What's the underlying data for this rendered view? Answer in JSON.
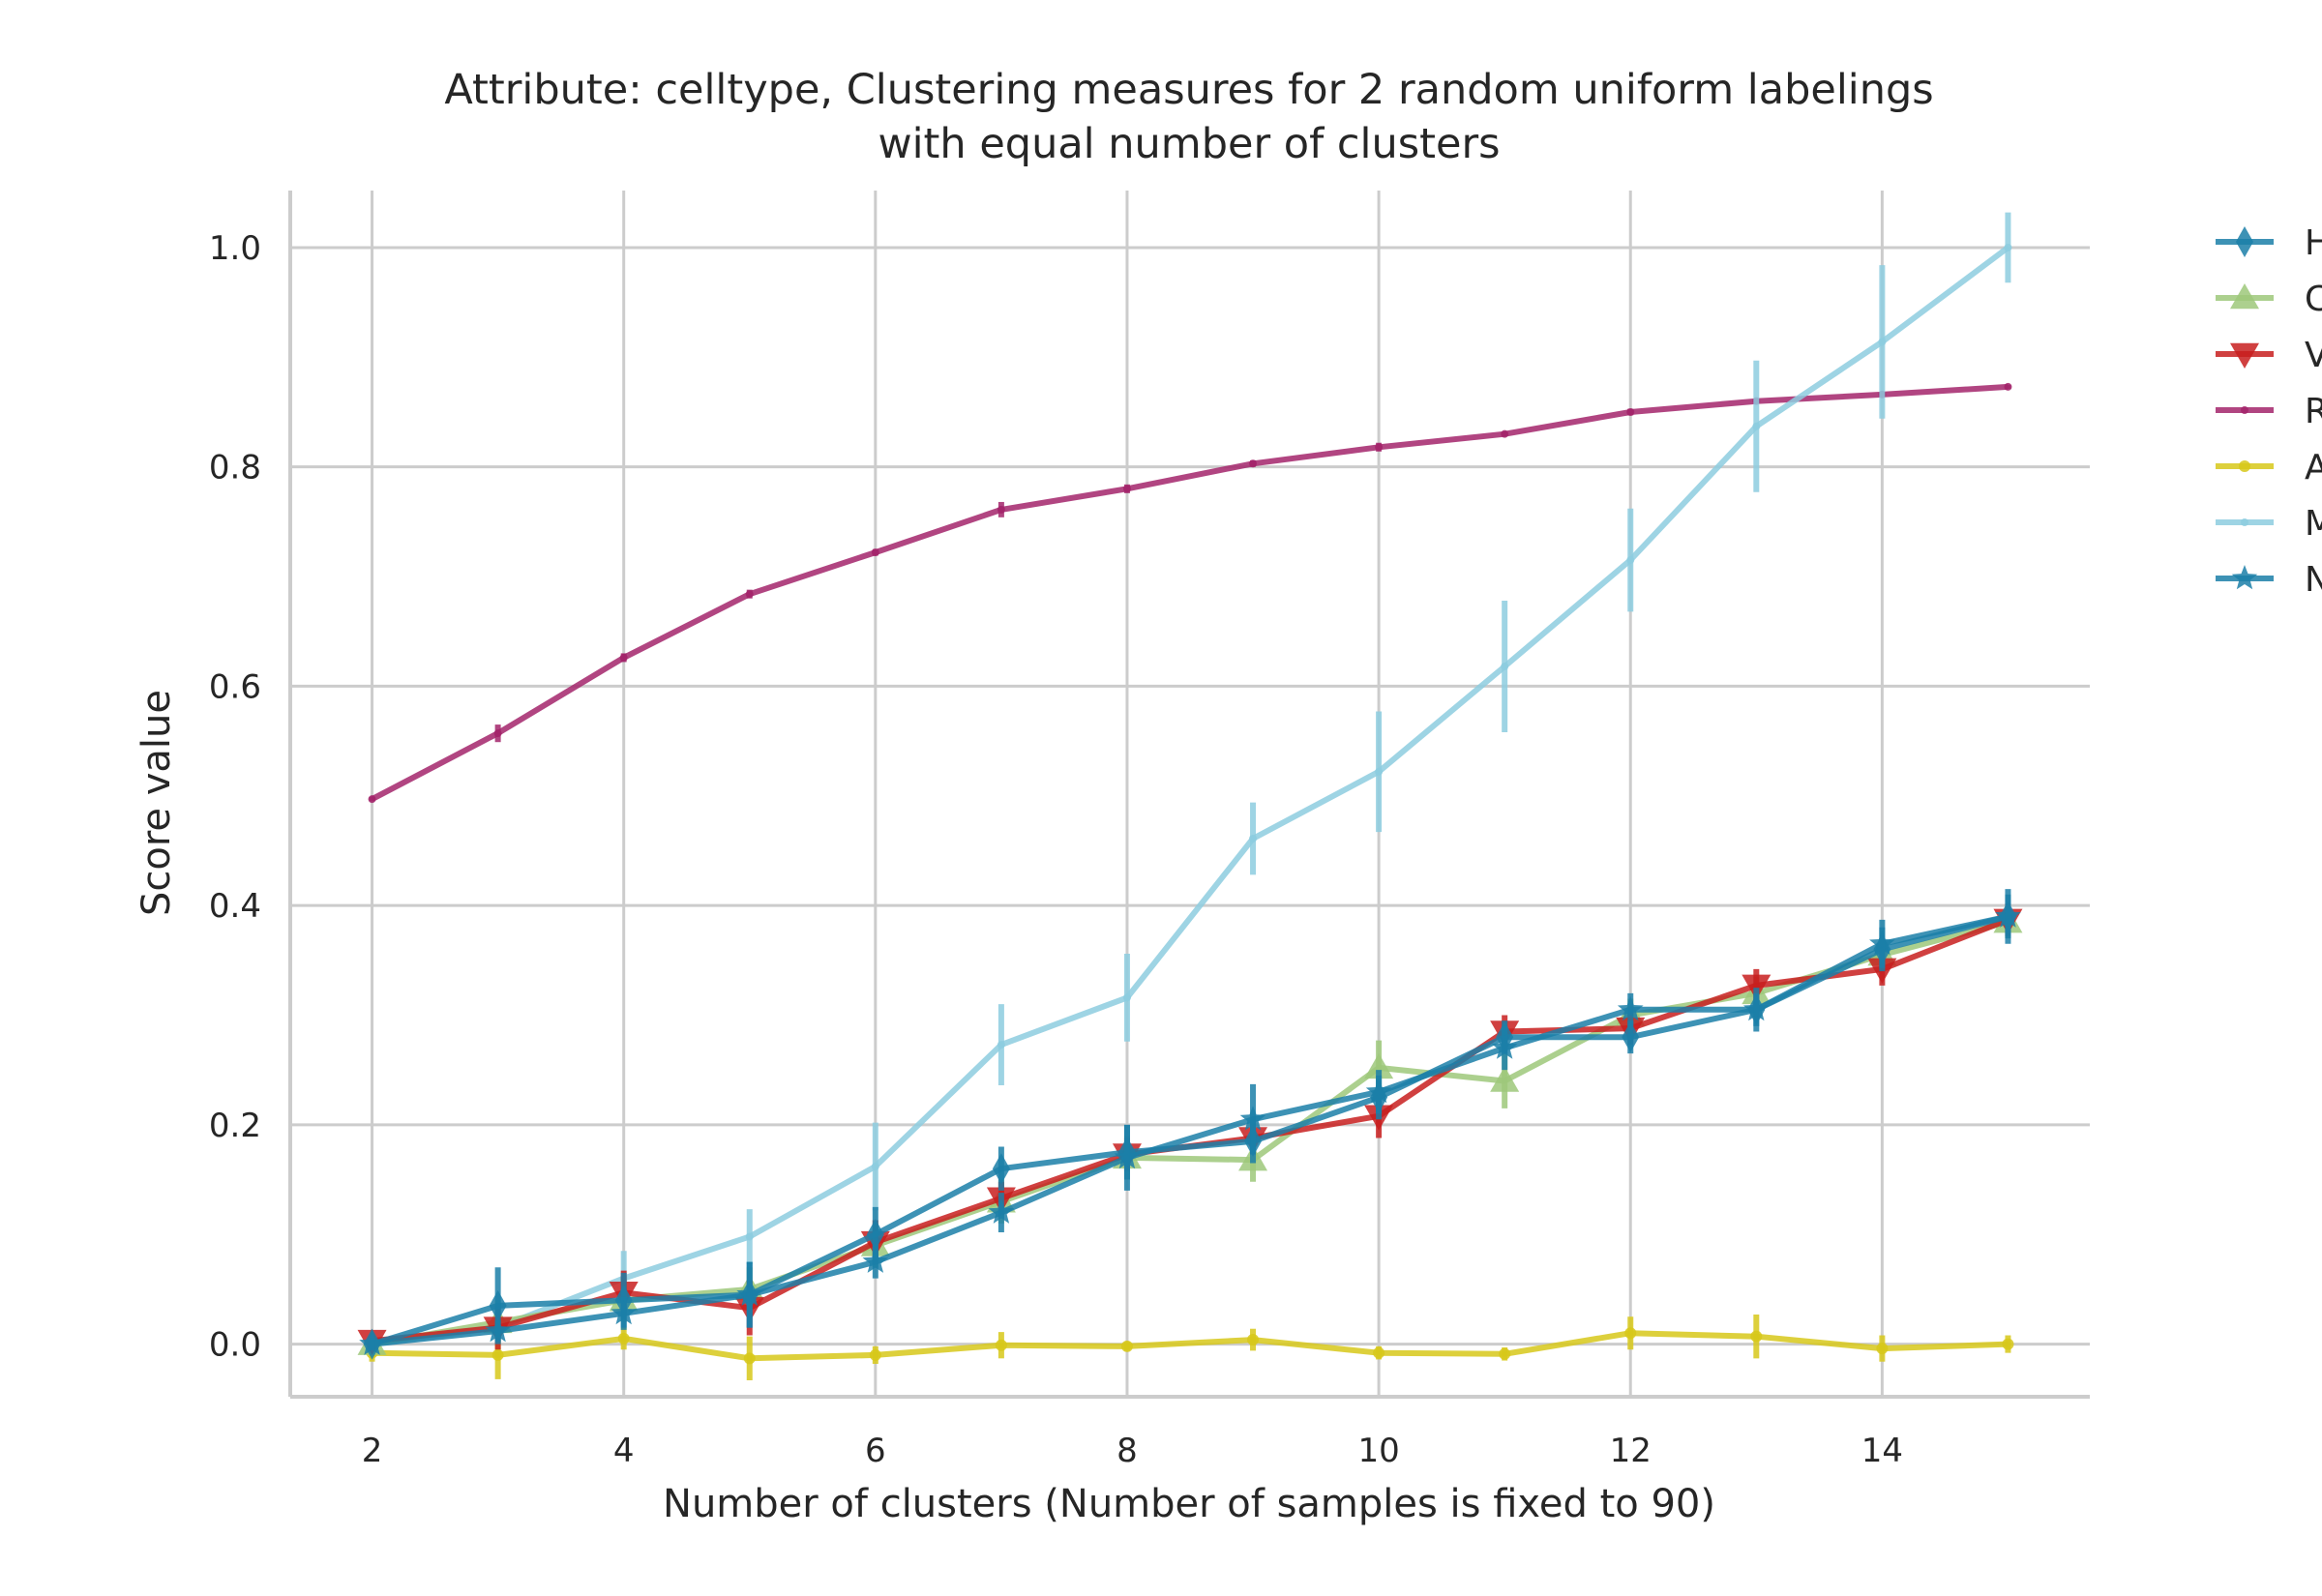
{
  "chart_data": {
    "type": "line",
    "title": [
      "Attribute: celltype, Clustering measures for 2 random uniform labelings",
      "with equal number of clusters"
    ],
    "xlabel": "Number of clusters (Number of samples is fixed to 90)",
    "ylabel": "Score value",
    "xlim": [
      1.35,
      15.65
    ],
    "ylim": [
      -0.048,
      1.052
    ],
    "xticks": [
      2,
      4,
      6,
      8,
      10,
      12,
      14
    ],
    "yticks": [
      0.0,
      0.2,
      0.4,
      0.6,
      0.8,
      1.0
    ],
    "ytick_labels": [
      "0.0",
      "0.2",
      "0.4",
      "0.6",
      "0.8",
      "1.0"
    ],
    "grid": true,
    "legend_placement": "outside-right",
    "x": [
      2,
      3,
      4,
      5,
      6,
      7,
      8,
      9,
      10,
      11,
      12,
      13,
      14,
      15
    ],
    "series": [
      {
        "name": "H",
        "color": "#1b7fa8",
        "marker": "thin_diamond",
        "values": [
          0.0,
          0.035,
          0.04,
          0.045,
          0.1,
          0.16,
          0.175,
          0.185,
          0.225,
          0.28,
          0.28,
          0.305,
          0.36,
          0.39
        ],
        "errors": [
          0.005,
          0.035,
          0.025,
          0.03,
          0.025,
          0.02,
          0.025,
          0.02,
          0.02,
          0.015,
          0.015,
          0.015,
          0.02,
          0.02
        ]
      },
      {
        "name": "C",
        "color": "#9dc87a",
        "marker": "triangle_up",
        "values": [
          0.0,
          0.02,
          0.04,
          0.05,
          0.09,
          0.13,
          0.17,
          0.168,
          0.252,
          0.24,
          0.3,
          0.32,
          0.355,
          0.385
        ],
        "errors": [
          0.005,
          0.02,
          0.02,
          0.02,
          0.02,
          0.02,
          0.02,
          0.02,
          0.025,
          0.025,
          0.015,
          0.015,
          0.015,
          0.015
        ]
      },
      {
        "name": "V",
        "color": "#c81e1e",
        "marker": "triangle_down",
        "values": [
          0.003,
          0.015,
          0.047,
          0.033,
          0.093,
          0.133,
          0.173,
          0.188,
          0.208,
          0.285,
          0.288,
          0.327,
          0.342,
          0.387
        ],
        "errors": [
          0.005,
          0.02,
          0.02,
          0.025,
          0.02,
          0.015,
          0.015,
          0.015,
          0.02,
          0.015,
          0.015,
          0.015,
          0.015,
          0.015
        ]
      },
      {
        "name": "R",
        "color": "#a3256b",
        "marker": "none",
        "values": [
          0.497,
          0.557,
          0.626,
          0.684,
          0.722,
          0.761,
          0.78,
          0.803,
          0.818,
          0.83,
          0.85,
          0.86,
          0.866,
          0.873
        ],
        "errors": [
          0.002,
          0.008,
          0.004,
          0.004,
          0.003,
          0.007,
          0.004,
          0.003,
          0.004,
          0.002,
          0.003,
          0.002,
          0.002,
          0.002
        ]
      },
      {
        "name": "A",
        "color": "#d7c81a",
        "marker": "point",
        "values": [
          -0.008,
          -0.01,
          0.005,
          -0.013,
          -0.01,
          -0.001,
          -0.002,
          0.004,
          -0.008,
          -0.009,
          0.01,
          0.007,
          -0.004,
          0.0
        ],
        "errors": [
          0.008,
          0.022,
          0.01,
          0.02,
          0.008,
          0.012,
          0.004,
          0.01,
          0.006,
          0.006,
          0.015,
          0.02,
          0.012,
          0.008
        ]
      },
      {
        "name": "M",
        "color": "#8dcddf",
        "marker": "none",
        "values": [
          0.0,
          0.015,
          0.06,
          0.098,
          0.162,
          0.273,
          0.316,
          0.461,
          0.522,
          0.618,
          0.715,
          0.837,
          0.914,
          1.0
        ],
        "errors": [
          0.005,
          0.015,
          0.025,
          0.025,
          0.04,
          0.037,
          0.04,
          0.033,
          0.055,
          0.06,
          0.047,
          0.06,
          0.07,
          0.032
        ]
      },
      {
        "name": "N",
        "color": "#1b7fa8",
        "marker": "star",
        "values": [
          0.0,
          0.012,
          0.028,
          0.045,
          0.075,
          0.12,
          0.17,
          0.205,
          0.23,
          0.27,
          0.305,
          0.305,
          0.365,
          0.39
        ],
        "errors": [
          0.005,
          0.01,
          0.015,
          0.03,
          0.015,
          0.018,
          0.03,
          0.032,
          0.02,
          0.02,
          0.015,
          0.02,
          0.022,
          0.025
        ]
      }
    ]
  }
}
